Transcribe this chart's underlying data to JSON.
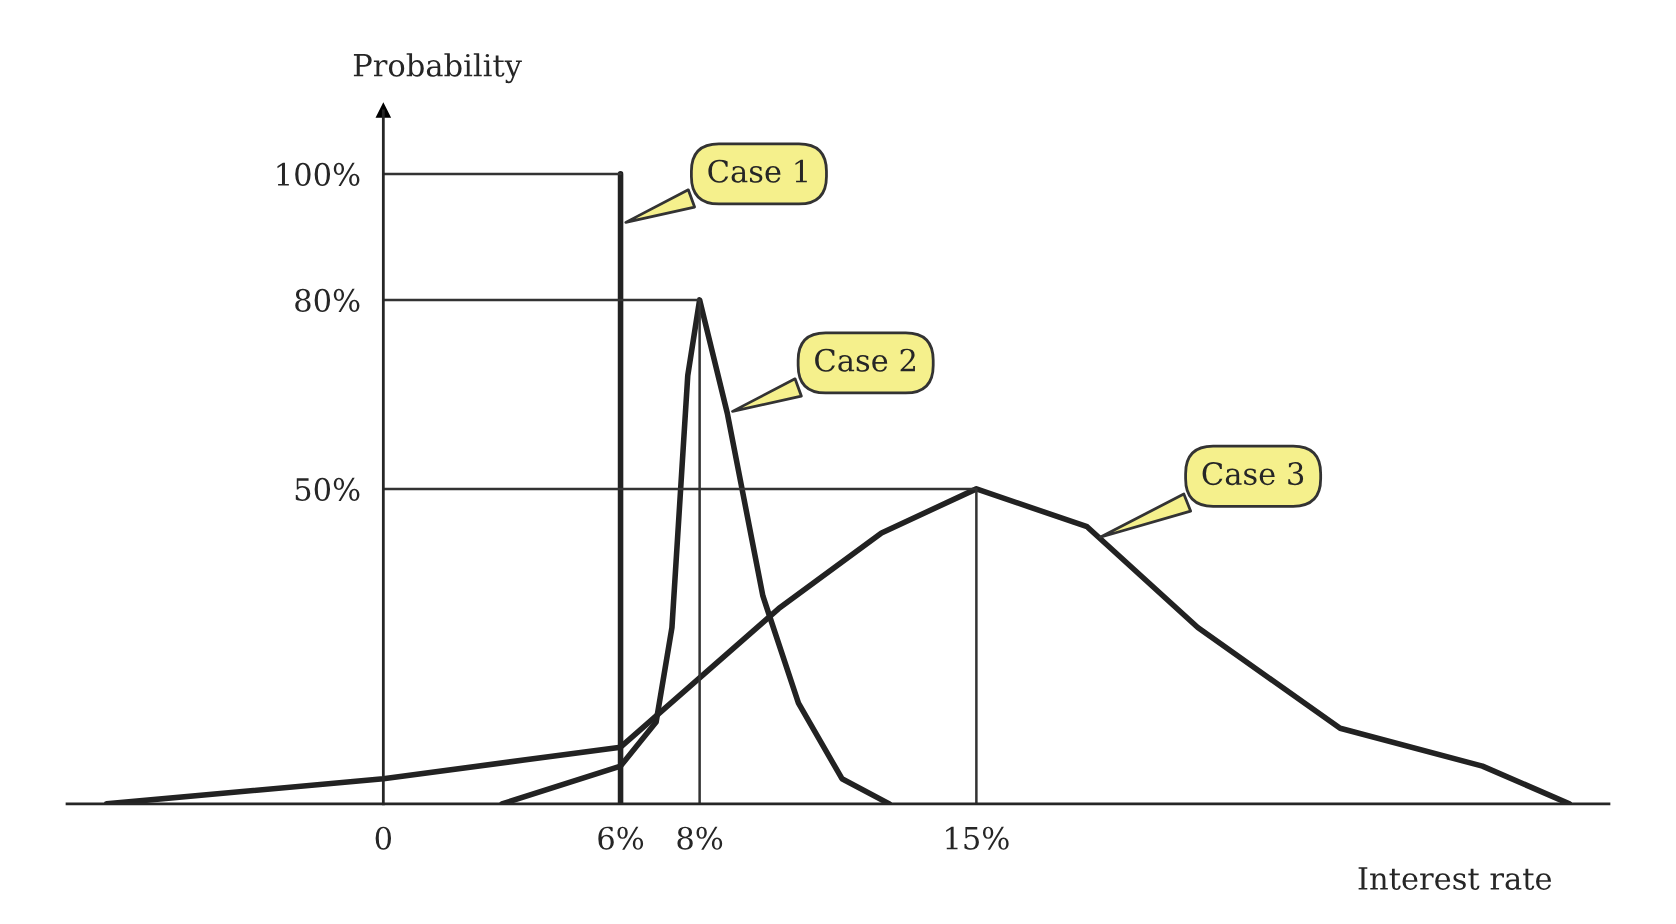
{
  "chart_data": {
    "type": "line",
    "xlabel": "Interest rate",
    "ylabel": "Probability",
    "xlim": [
      -8,
      31
    ],
    "ylim": [
      0,
      110
    ],
    "xticks": [
      {
        "value": 0,
        "label": "0"
      },
      {
        "value": 6,
        "label": "6%"
      },
      {
        "value": 8,
        "label": "8%"
      },
      {
        "value": 15,
        "label": "15%"
      }
    ],
    "yticks": [
      {
        "value": 50,
        "label": "50%"
      },
      {
        "value": 80,
        "label": "80%"
      },
      {
        "value": 100,
        "label": "100%"
      }
    ],
    "grid": false,
    "legend": false,
    "marker": "none",
    "line_style": "solid",
    "series": [
      {
        "color": "#222222",
        "x": [
          6,
          6
        ],
        "values": [
          0,
          100
        ]
      },
      {
        "color": "#222222",
        "x": [
          3,
          6,
          6.9,
          7.3,
          7.7,
          8,
          8.7,
          9.6,
          10.5,
          11.6,
          12.8
        ],
        "values": [
          0,
          6,
          13,
          28,
          68,
          80,
          62,
          33,
          16,
          4,
          0
        ]
      },
      {
        "color": "#222222",
        "x": [
          -7,
          0,
          6,
          8,
          10,
          12.6,
          15,
          17.8,
          20.6,
          24.2,
          27.8,
          30
        ],
        "values": [
          0,
          4,
          9,
          20,
          31,
          43,
          50,
          44,
          28,
          12,
          6,
          0
        ]
      },
      {
        "color": "#333333",
        "x": [
          0,
          6
        ],
        "values": [
          100,
          100
        ]
      },
      {
        "color": "#333333",
        "x": [
          0,
          8,
          8
        ],
        "values": [
          80,
          80,
          0
        ]
      },
      {
        "color": "#333333",
        "x": [
          0,
          15,
          15
        ],
        "values": [
          50,
          50,
          0
        ]
      }
    ],
    "annotations": [
      {
        "text": "Case 1",
        "x": 6,
        "y": 92
      },
      {
        "text": "Case 2",
        "x": 8.7,
        "y": 62
      },
      {
        "text": "Case 3",
        "x": 18,
        "y": 42
      }
    ]
  }
}
